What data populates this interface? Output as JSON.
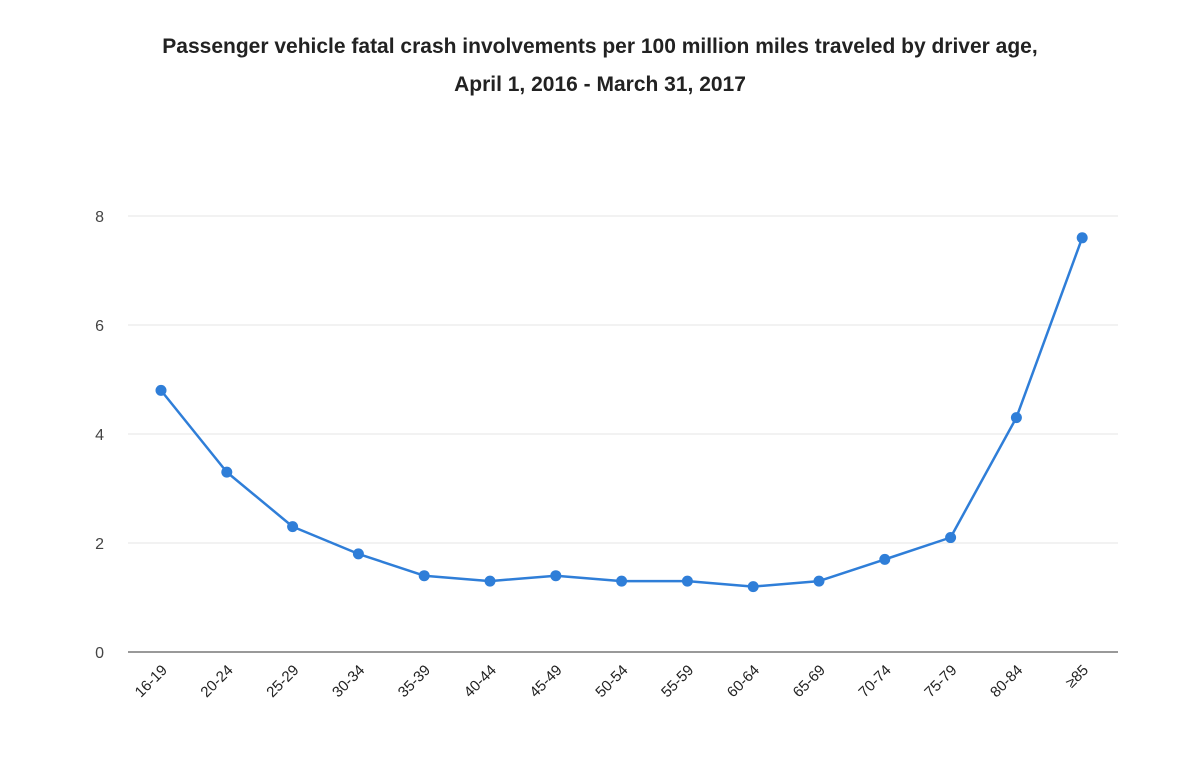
{
  "chart_data": {
    "type": "line",
    "title": "Passenger vehicle fatal crash involvements per 100 million miles traveled by driver age,",
    "subtitle": "April 1, 2016 - March 31, 2017",
    "xlabel": "",
    "ylabel": "",
    "categories": [
      "16-19",
      "20-24",
      "25-29",
      "30-34",
      "35-39",
      "40-44",
      "45-49",
      "50-54",
      "55-59",
      "60-64",
      "65-69",
      "70-74",
      "75-79",
      "80-84",
      "≥85"
    ],
    "series": [
      {
        "values": [
          4.8,
          3.3,
          2.3,
          1.8,
          1.4,
          1.3,
          1.4,
          1.3,
          1.3,
          1.2,
          1.3,
          1.7,
          2.1,
          4.3,
          7.6
        ]
      }
    ],
    "ylim": [
      0,
      8
    ],
    "yticks": [
      0,
      2,
      4,
      6,
      8
    ],
    "grid": true,
    "legend": "none",
    "color": "#2f7ed8"
  }
}
